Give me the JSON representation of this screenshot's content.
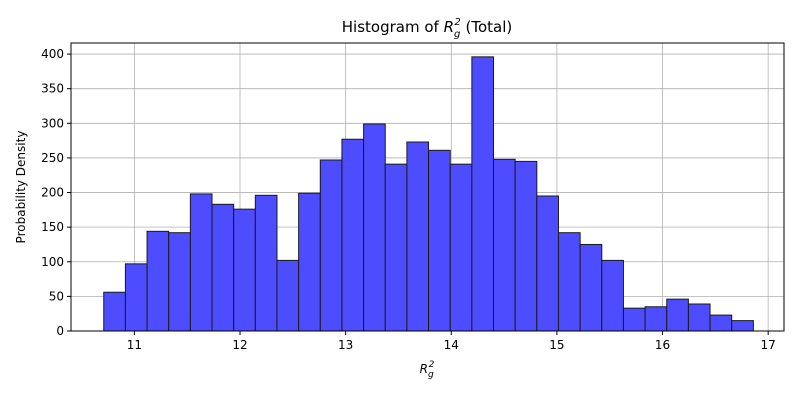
{
  "chart_data": {
    "type": "histogram",
    "title": {
      "before": "Histogram of ",
      "base": "R",
      "sub": "g",
      "sup": "2",
      "after": " (Total)"
    },
    "xlabel": {
      "base": "R",
      "sub": "g",
      "sup": "2"
    },
    "ylabel": "Probability Density",
    "bins": [
      10.71,
      10.915,
      11.12,
      11.325,
      11.53,
      11.735,
      11.94,
      12.145,
      12.35,
      12.555,
      12.76,
      12.965,
      13.17,
      13.375,
      13.58,
      13.785,
      13.99,
      14.195,
      14.4,
      14.605,
      14.81,
      15.015,
      15.22,
      15.425,
      15.63,
      15.835,
      16.04,
      16.245,
      16.45,
      16.655,
      16.86
    ],
    "values": [
      56,
      97,
      144,
      142,
      198,
      183,
      176,
      196,
      102,
      199,
      247,
      277,
      299,
      241,
      273,
      261,
      241,
      396,
      248,
      245,
      195,
      142,
      125,
      102,
      33,
      35,
      46,
      39,
      23,
      15
    ],
    "color": "#4d4dff",
    "edgecolor": "#1a1a1a",
    "xlim": [
      10.4,
      17.15
    ],
    "xticks": [
      11,
      12,
      13,
      14,
      15,
      16,
      17
    ],
    "ylim": [
      0,
      416
    ],
    "yticks": [
      0,
      50,
      100,
      150,
      200,
      250,
      300,
      350,
      400
    ],
    "grid": true
  }
}
